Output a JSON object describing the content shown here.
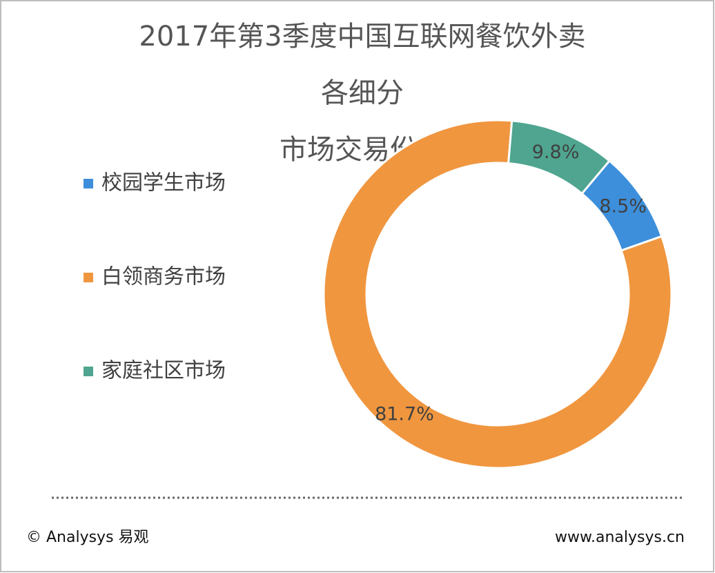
{
  "chart_data": {
    "type": "donut",
    "title_lines": [
      "2017年第3季度中国互联网餐饮外卖",
      "各细分",
      "市场交易份额"
    ],
    "categories": [
      "校园学生市场",
      "白领商务市场",
      "家庭社区市场"
    ],
    "values": [
      8.5,
      81.7,
      9.8
    ],
    "value_labels": [
      "8.5%",
      "81.7%",
      "9.8%"
    ],
    "colors": [
      "#3d8fdb",
      "#f0963f",
      "#4fa58f"
    ],
    "legend": "left"
  },
  "footer": {
    "left": "© Analysys 易观",
    "right": "www.analysys.cn"
  }
}
